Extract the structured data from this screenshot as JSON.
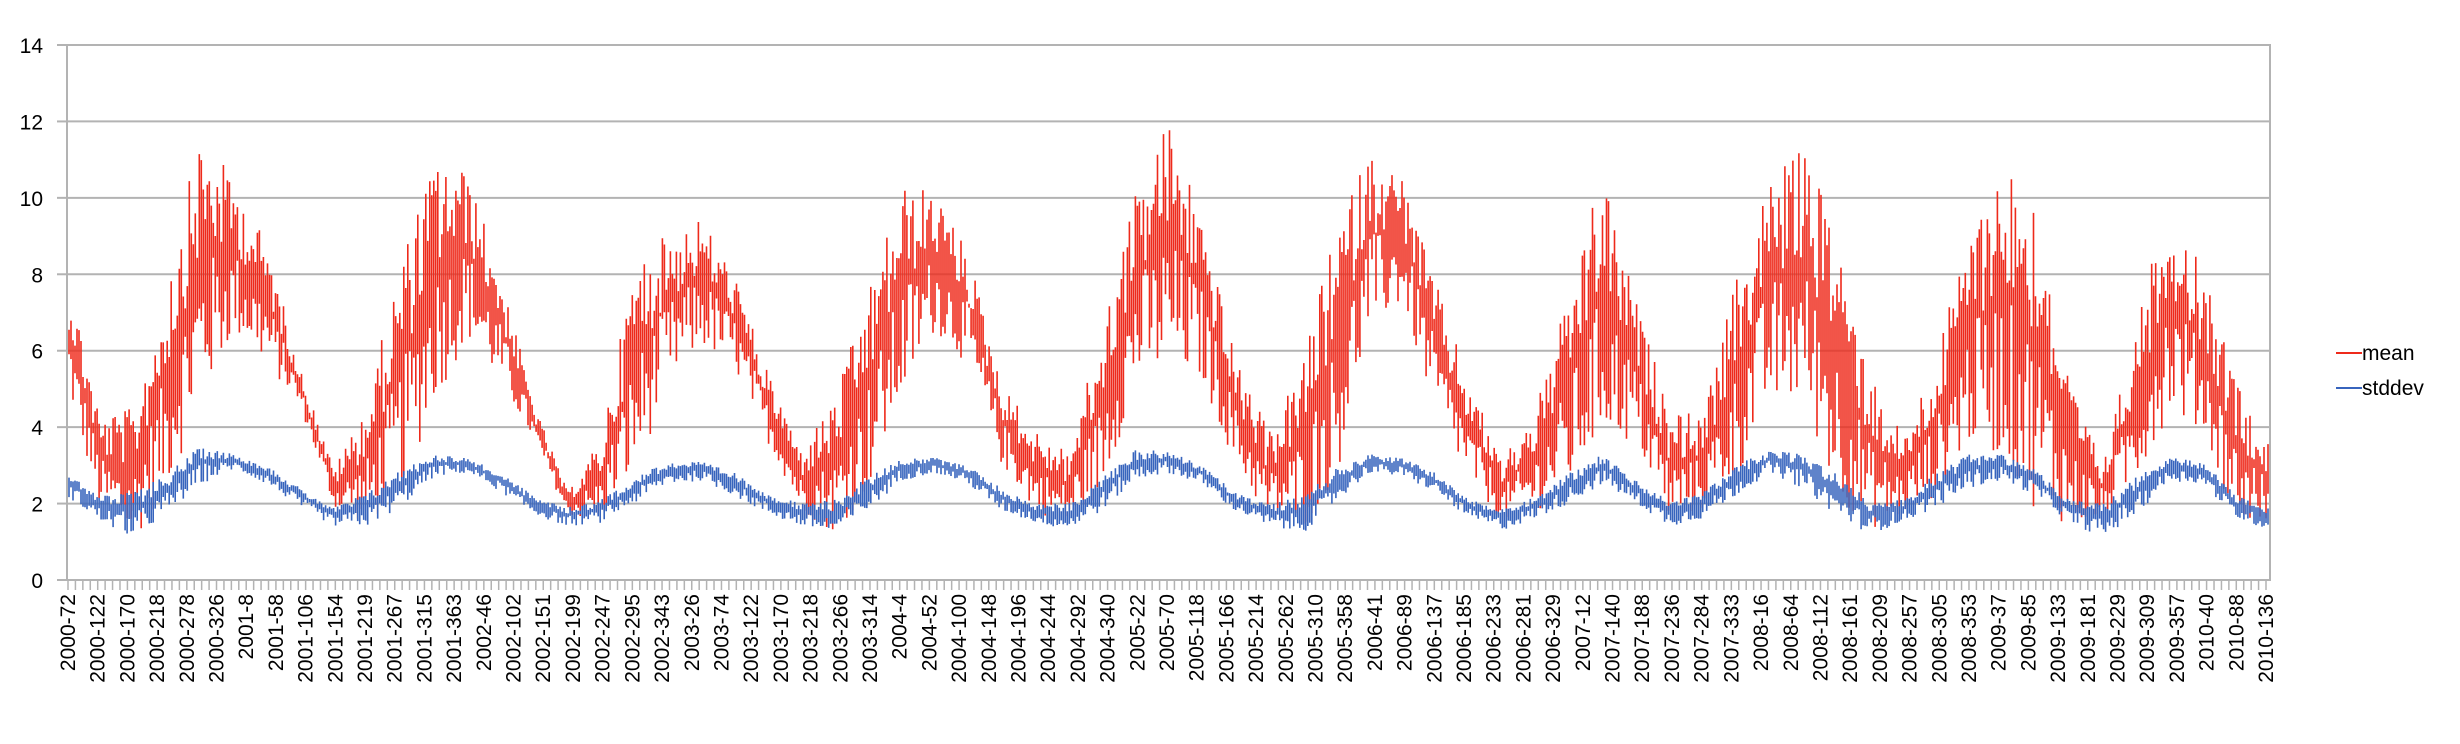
{
  "chart_data": {
    "type": "line",
    "title": "",
    "xlabel": "",
    "ylabel": "",
    "ylim": [
      0,
      14
    ],
    "yticks": [
      0,
      2,
      4,
      6,
      8,
      10,
      12,
      14
    ],
    "grid": "horizontal",
    "legend_position": "right",
    "x_range": [
      "2000-72",
      "2010-136"
    ],
    "x_tick_labels": [
      "2000-72",
      "2000-122",
      "2000-170",
      "2000-218",
      "2000-278",
      "2000-326",
      "2001-8",
      "2001-58",
      "2001-106",
      "2001-154",
      "2001-219",
      "2001-267",
      "2001-315",
      "2001-363",
      "2002-46",
      "2002-102",
      "2002-151",
      "2002-199",
      "2002-247",
      "2002-295",
      "2002-343",
      "2003-26",
      "2003-74",
      "2003-122",
      "2003-170",
      "2003-218",
      "2003-266",
      "2003-314",
      "2004-4",
      "2004-52",
      "2004-100",
      "2004-148",
      "2004-196",
      "2004-244",
      "2004-292",
      "2004-340",
      "2005-22",
      "2005-70",
      "2005-118",
      "2005-166",
      "2005-214",
      "2005-262",
      "2005-310",
      "2005-358",
      "2006-41",
      "2006-89",
      "2006-137",
      "2006-185",
      "2006-233",
      "2006-281",
      "2006-329",
      "2007-12",
      "2007-140",
      "2007-188",
      "2007-236",
      "2007-284",
      "2007-333",
      "2008-16",
      "2008-64",
      "2008-112",
      "2008-161",
      "2008-209",
      "2008-257",
      "2008-305",
      "2008-353",
      "2009-37",
      "2009-85",
      "2009-133",
      "2009-181",
      "2009-229",
      "2009-309",
      "2009-357",
      "2010-40",
      "2010-88",
      "2010-136"
    ],
    "series": [
      {
        "name": "mean",
        "color": "#ee2a1b",
        "envelope_min": [
          5.0,
          1.8,
          1.0,
          2.4,
          4.5,
          6.4,
          5.6,
          4.5,
          1.9,
          1.4,
          2.1,
          4.6,
          6.3,
          5.1,
          3.6,
          1.7,
          1.5,
          2.7,
          5.0,
          6.1,
          5.5,
          3.6,
          1.8,
          1.2,
          2.3,
          4.6,
          6.5,
          5.6,
          3.0,
          1.8,
          1.4,
          2.3,
          5.0,
          5.3,
          5.2,
          3.0,
          1.5,
          1.3,
          2.5,
          6.5,
          7.2,
          4.3,
          2.6,
          1.5,
          1.8,
          2.3,
          3.8,
          3.5,
          1.5,
          1.8,
          2.6,
          4.4,
          4.6,
          2.2,
          1.3,
          1.6,
          2.2,
          3.5,
          3.2,
          1.8,
          1.4,
          1.6,
          2.6,
          4.4,
          3.8,
          1.5,
          1.5
        ],
        "envelope_max": [
          8.2,
          4.3,
          4.5,
          8.0,
          11.7,
          10.5,
          8.8,
          5.5,
          2.9,
          4.7,
          8.4,
          11.0,
          10.7,
          8.0,
          4.6,
          2.3,
          3.7,
          8.3,
          9.1,
          9.5,
          8.0,
          5.4,
          3.4,
          4.8,
          7.5,
          10.3,
          10.2,
          8.6,
          5.2,
          3.9,
          3.4,
          6.5,
          10.2,
          12.1,
          9.6,
          5.8,
          3.9,
          5.6,
          9.2,
          11.2,
          10.6,
          7.8,
          5.2,
          3.2,
          4.5,
          7.5,
          10.7,
          7.3,
          4.5,
          4.3,
          7.8,
          10.6,
          11.3,
          9.3,
          5.5,
          3.8,
          5.8,
          9.3,
          11.1,
          10.0,
          5.2,
          3.0,
          6.8,
          10.1,
          8.0,
          5.3,
          3.5
        ]
      },
      {
        "name": "stddev",
        "color": "#3764bd",
        "envelope_min": [
          2.2,
          1.5,
          1.1,
          1.7,
          2.5,
          2.9,
          2.5,
          1.9,
          1.4,
          1.4,
          1.9,
          2.7,
          2.8,
          2.3,
          1.7,
          1.4,
          1.5,
          2.0,
          2.5,
          2.6,
          2.2,
          1.7,
          1.4,
          1.2,
          1.8,
          2.6,
          2.8,
          2.5,
          1.8,
          1.5,
          1.3,
          1.8,
          2.6,
          2.8,
          2.5,
          1.8,
          1.4,
          1.2,
          2.0,
          2.8,
          2.7,
          2.3,
          1.6,
          1.3,
          1.6,
          2.0,
          2.5,
          2.0,
          1.4,
          1.6,
          2.2,
          2.8,
          2.4,
          1.7,
          1.2,
          1.5,
          1.9,
          2.4,
          2.6,
          2.2,
          1.5,
          1.1,
          1.7,
          2.6,
          2.5,
          1.6,
          1.3
        ],
        "envelope_max": [
          2.9,
          2.2,
          2.3,
          2.8,
          3.5,
          3.3,
          3.0,
          2.4,
          1.9,
          2.3,
          2.9,
          3.3,
          3.2,
          2.8,
          2.2,
          1.9,
          2.1,
          2.7,
          3.1,
          3.1,
          2.8,
          2.3,
          2.0,
          2.1,
          2.7,
          3.2,
          3.2,
          3.0,
          2.4,
          2.0,
          2.0,
          2.7,
          3.4,
          3.4,
          3.0,
          2.3,
          2.0,
          2.2,
          2.9,
          3.3,
          3.2,
          2.8,
          2.1,
          1.9,
          2.2,
          2.8,
          3.3,
          2.6,
          2.1,
          2.3,
          3.0,
          3.4,
          3.3,
          2.8,
          2.1,
          2.1,
          2.8,
          3.3,
          3.3,
          2.9,
          2.1,
          2.0,
          2.7,
          3.2,
          3.1,
          2.2,
          1.9
        ]
      }
    ]
  }
}
